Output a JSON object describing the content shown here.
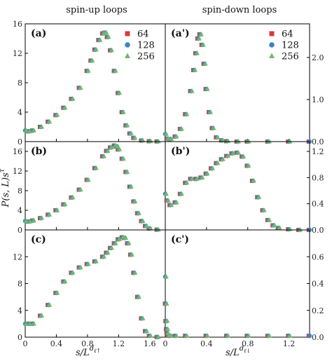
{
  "colors": {
    "s64": "#d93a3a",
    "s128": "#3a86c2",
    "s256": "#6fb86a"
  },
  "figure": {
    "col_titles": [
      "spin-up loops",
      "spin-down loops"
    ],
    "ylabel": "P(s, L)s^τ",
    "ylabel_main": "P(s, L)s",
    "ylabel_sup": "τ",
    "xlabels": [
      "s/L^{d_ℓ↑}",
      "s/L^{d_ℓ↓}"
    ],
    "xlabel_main": "s/L",
    "xlabel_sup_left": "d",
    "xlabel_sub_left": "ℓ↑",
    "xlabel_sup_right": "d",
    "xlabel_sub_right": "ℓ↓",
    "legend": [
      "64",
      "128",
      "256"
    ]
  },
  "chart_data": [
    {
      "id": "a",
      "label": "(a)",
      "type": "scatter",
      "xlim": [
        0,
        1.8
      ],
      "ylim": [
        0,
        16
      ],
      "xticks": [
        "0",
        "0.4",
        "0.8",
        "1.2",
        "1.6"
      ],
      "yticks": [
        "0",
        "4",
        "8",
        "12",
        "16"
      ],
      "series": [
        {
          "name": "64",
          "marker": "square",
          "color": "#d93a3a"
        },
        {
          "name": "128",
          "marker": "circle",
          "color": "#3a86c2"
        },
        {
          "name": "256",
          "marker": "triangle",
          "color": "#6fb86a"
        }
      ],
      "x": [
        0.0,
        0.05,
        0.1,
        0.2,
        0.3,
        0.4,
        0.5,
        0.6,
        0.7,
        0.8,
        0.85,
        0.9,
        0.95,
        1.0,
        1.03,
        1.06,
        1.1,
        1.15,
        1.2,
        1.25,
        1.3,
        1.35,
        1.4,
        1.5,
        1.6,
        1.7
      ],
      "y": [
        1.5,
        1.4,
        1.5,
        2.0,
        2.7,
        3.6,
        4.6,
        5.8,
        7.3,
        9.6,
        11.0,
        12.5,
        13.8,
        14.7,
        14.8,
        14.2,
        12.4,
        9.6,
        6.6,
        4.0,
        2.2,
        1.1,
        0.5,
        0.15,
        0.05,
        0.02
      ]
    },
    {
      "id": "a'",
      "label": "(a')",
      "type": "scatter",
      "xlim": [
        0,
        1.4
      ],
      "ylim": [
        0,
        2.8
      ],
      "yticks": [
        "0.0",
        "1.0",
        "2.0"
      ],
      "series": [
        {
          "name": "64",
          "marker": "square",
          "color": "#d93a3a"
        },
        {
          "name": "128",
          "marker": "circle",
          "color": "#3a86c2"
        },
        {
          "name": "256",
          "marker": "triangle",
          "color": "#6fb86a"
        }
      ],
      "x": [
        0.0,
        0.02,
        0.05,
        0.1,
        0.15,
        0.2,
        0.25,
        0.28,
        0.3,
        0.32,
        0.34,
        0.36,
        0.38,
        0.4,
        0.43,
        0.46,
        0.5,
        0.55,
        0.6,
        0.7,
        0.8,
        1.0,
        1.2,
        1.4
      ],
      "y": [
        0.18,
        0.07,
        0.06,
        0.12,
        0.3,
        0.65,
        1.2,
        1.7,
        2.1,
        2.45,
        2.55,
        2.3,
        1.85,
        1.25,
        0.7,
        0.32,
        0.1,
        0.03,
        0.01,
        0.0,
        0.0,
        0.0,
        0.0,
        0.0
      ]
    },
    {
      "id": "b",
      "label": "(b)",
      "type": "scatter",
      "xlim": [
        0,
        1.8
      ],
      "ylim": [
        0,
        18
      ],
      "yticks": [
        "0",
        "4",
        "8",
        "12",
        "16"
      ],
      "series": [
        {
          "name": "64",
          "marker": "square",
          "color": "#d93a3a"
        },
        {
          "name": "128",
          "marker": "circle",
          "color": "#3a86c2"
        },
        {
          "name": "256",
          "marker": "triangle",
          "color": "#6fb86a"
        }
      ],
      "x": [
        0.0,
        0.05,
        0.1,
        0.2,
        0.3,
        0.4,
        0.5,
        0.6,
        0.7,
        0.8,
        0.9,
        1.0,
        1.05,
        1.1,
        1.15,
        1.18,
        1.2,
        1.25,
        1.3,
        1.35,
        1.4,
        1.45,
        1.5,
        1.55,
        1.6,
        1.7
      ],
      "y": [
        1.8,
        1.7,
        1.9,
        2.4,
        3.1,
        4.0,
        5.2,
        6.6,
        8.2,
        10.2,
        12.6,
        15.0,
        16.1,
        16.8,
        17.2,
        17.0,
        16.4,
        14.5,
        11.8,
        8.8,
        5.8,
        3.4,
        1.8,
        0.8,
        0.3,
        0.05
      ]
    },
    {
      "id": "b'",
      "label": "(b')",
      "type": "scatter",
      "xlim": [
        0,
        1.4
      ],
      "ylim": [
        0,
        1.35
      ],
      "yticks": [
        "0.0",
        "0.4",
        "0.8",
        "1.2"
      ],
      "series": [
        {
          "name": "64",
          "marker": "square",
          "color": "#d93a3a"
        },
        {
          "name": "128",
          "marker": "circle",
          "color": "#3a86c2"
        },
        {
          "name": "256",
          "marker": "triangle",
          "color": "#6fb86a"
        }
      ],
      "x": [
        0.0,
        0.02,
        0.05,
        0.1,
        0.15,
        0.2,
        0.25,
        0.3,
        0.35,
        0.4,
        0.45,
        0.5,
        0.55,
        0.6,
        0.65,
        0.7,
        0.75,
        0.8,
        0.85,
        0.9,
        0.95,
        1.0,
        1.05,
        1.1,
        1.2,
        1.3,
        1.4
      ],
      "y": [
        0.55,
        0.45,
        0.38,
        0.42,
        0.55,
        0.72,
        0.78,
        0.78,
        0.8,
        0.86,
        0.94,
        1.02,
        1.08,
        1.13,
        1.17,
        1.18,
        1.12,
        0.98,
        0.75,
        0.5,
        0.3,
        0.15,
        0.07,
        0.03,
        0.01,
        0.0,
        0.0
      ]
    },
    {
      "id": "c",
      "label": "(c)",
      "type": "scatter",
      "xlim": [
        0,
        1.8
      ],
      "ylim": [
        0,
        16
      ],
      "yticks": [
        "0",
        "4",
        "8",
        "12"
      ],
      "series": [
        {
          "name": "64",
          "marker": "square",
          "color": "#d93a3a"
        },
        {
          "name": "128",
          "marker": "circle",
          "color": "#3a86c2"
        },
        {
          "name": "256",
          "marker": "triangle",
          "color": "#6fb86a"
        }
      ],
      "x": [
        0.0,
        0.05,
        0.1,
        0.2,
        0.3,
        0.4,
        0.5,
        0.6,
        0.7,
        0.8,
        0.9,
        1.0,
        1.05,
        1.1,
        1.15,
        1.2,
        1.25,
        1.28,
        1.32,
        1.36,
        1.4,
        1.45,
        1.5,
        1.55,
        1.6,
        1.7
      ],
      "y": [
        2.0,
        2.0,
        2.0,
        3.2,
        4.8,
        6.6,
        8.3,
        9.6,
        10.4,
        10.9,
        11.3,
        12.0,
        12.6,
        13.3,
        14.0,
        14.6,
        14.9,
        14.8,
        14.0,
        12.3,
        9.6,
        6.0,
        2.8,
        0.9,
        0.2,
        0.02
      ]
    },
    {
      "id": "c'",
      "label": "(c')",
      "type": "scatter",
      "xlim": [
        0,
        1.4
      ],
      "ylim": [
        0,
        0.8
      ],
      "yticks": [
        "0.0",
        "0.2",
        "0.4",
        "0.6"
      ],
      "series": [
        {
          "name": "64",
          "marker": "square",
          "color": "#d93a3a"
        },
        {
          "name": "128",
          "marker": "circle",
          "color": "#3a86c2"
        },
        {
          "name": "256",
          "marker": "triangle",
          "color": "#6fb86a"
        }
      ],
      "x": [
        0.0,
        0.005,
        0.01,
        0.015,
        0.02,
        0.03,
        0.05,
        0.1,
        0.2,
        0.4,
        0.6,
        0.8,
        1.0,
        1.2,
        1.4
      ],
      "y": [
        0.45,
        0.25,
        0.12,
        0.06,
        0.03,
        0.015,
        0.01,
        0.01,
        0.01,
        0.01,
        0.01,
        0.01,
        0.01,
        0.01,
        0.01
      ]
    }
  ]
}
